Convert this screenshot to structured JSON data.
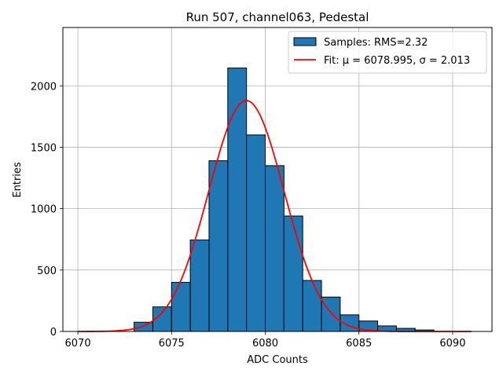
{
  "chart_data": {
    "type": "bar",
    "title": "Run 507, channel063, Pedestal",
    "xlabel": "ADC Counts",
    "ylabel": "Entries",
    "xlim": [
      6069.2,
      6092.1
    ],
    "ylim": [
      0,
      2475
    ],
    "xticks": [
      "6070",
      "6075",
      "6080",
      "6085",
      "6090"
    ],
    "yticks": [
      "0",
      "500",
      "1000",
      "1500",
      "2000"
    ],
    "grid": true,
    "legend_placement": "top-right",
    "bins": {
      "edges": [
        6073,
        6074,
        6075,
        6076,
        6077,
        6078,
        6079,
        6080,
        6081,
        6082,
        6083,
        6084,
        6085,
        6086,
        6087,
        6088,
        6089
      ],
      "values": [
        75,
        200,
        400,
        745,
        1390,
        2145,
        1600,
        1350,
        940,
        415,
        280,
        135,
        85,
        45,
        25,
        12
      ]
    },
    "fit": {
      "mu": 6078.995,
      "sigma": 2.013,
      "amplitude": 1880,
      "x_range": [
        6070,
        6091
      ]
    },
    "series": [
      {
        "name": "Samples: RMS=2.32",
        "kind": "histogram",
        "color": "#1f77b4"
      },
      {
        "name": "Fit: μ = 6078.995, σ = 2.013",
        "kind": "line",
        "color": "#ff0000"
      }
    ]
  }
}
